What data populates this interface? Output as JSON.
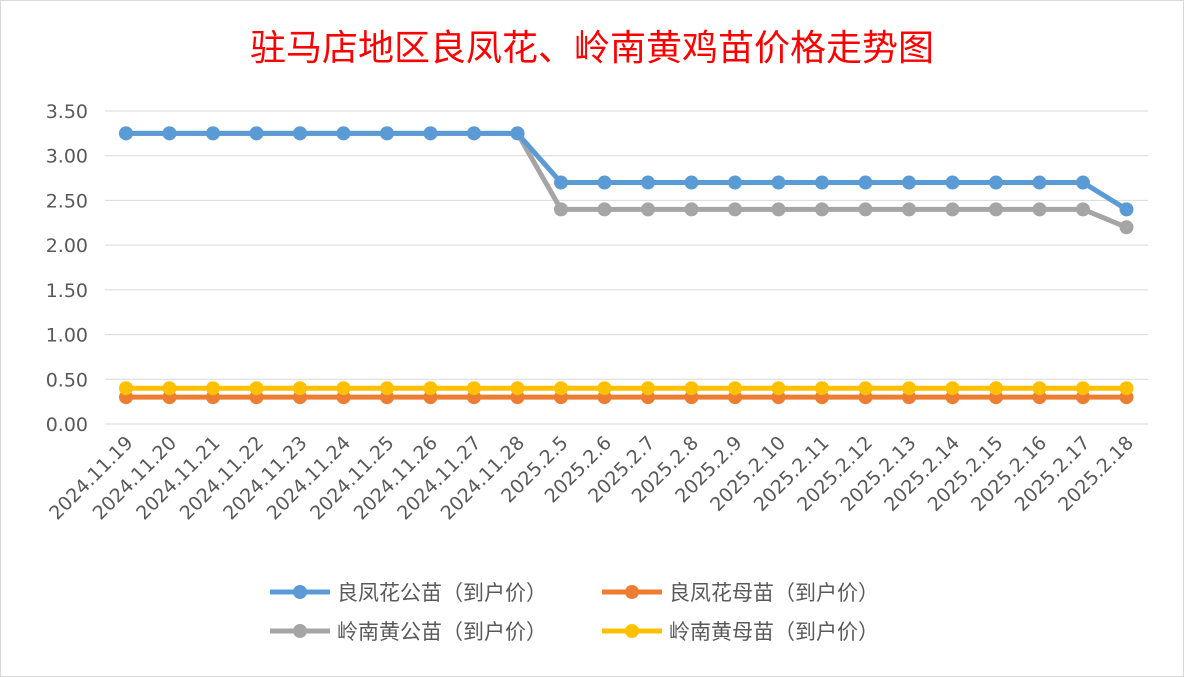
{
  "chart_data": {
    "type": "line",
    "title": "驻马店地区良凤花、岭南黄鸡苗价格走势图",
    "xlabel": "",
    "ylabel": "",
    "categories": [
      "2024.11.19",
      "2024.11.20",
      "2024.11.21",
      "2024.11.22",
      "2024.11.23",
      "2024.11.24",
      "2024.11.25",
      "2024.11.26",
      "2024.11.27",
      "2024.11.28",
      "2025.2.5",
      "2025.2.6",
      "2025.2.7",
      "2025.2.8",
      "2025.2.9",
      "2025.2.10",
      "2025.2.11",
      "2025.2.12",
      "2025.2.13",
      "2025.2.14",
      "2025.2.15",
      "2025.2.16",
      "2025.2.17",
      "2025.2.18"
    ],
    "ylim": [
      0,
      3.5
    ],
    "yticks": [
      "0.00",
      "0.50",
      "1.00",
      "1.50",
      "2.00",
      "2.50",
      "3.00",
      "3.50"
    ],
    "grid": true,
    "legend_position": "bottom",
    "series": [
      {
        "name": "良凤花公苗（到户价）",
        "color": "#5b9bd5",
        "values": [
          3.25,
          3.25,
          3.25,
          3.25,
          3.25,
          3.25,
          3.25,
          3.25,
          3.25,
          3.25,
          2.7,
          2.7,
          2.7,
          2.7,
          2.7,
          2.7,
          2.7,
          2.7,
          2.7,
          2.7,
          2.7,
          2.7,
          2.7,
          2.4
        ]
      },
      {
        "name": "良凤花母苗（到户价）",
        "color": "#ed7d31",
        "values": [
          0.3,
          0.3,
          0.3,
          0.3,
          0.3,
          0.3,
          0.3,
          0.3,
          0.3,
          0.3,
          0.3,
          0.3,
          0.3,
          0.3,
          0.3,
          0.3,
          0.3,
          0.3,
          0.3,
          0.3,
          0.3,
          0.3,
          0.3,
          0.3
        ]
      },
      {
        "name": "岭南黄公苗（到户价）",
        "color": "#a5a5a5",
        "values": [
          3.25,
          3.25,
          3.25,
          3.25,
          3.25,
          3.25,
          3.25,
          3.25,
          3.25,
          3.25,
          2.4,
          2.4,
          2.4,
          2.4,
          2.4,
          2.4,
          2.4,
          2.4,
          2.4,
          2.4,
          2.4,
          2.4,
          2.4,
          2.2
        ]
      },
      {
        "name": "岭南黄母苗（到户价）",
        "color": "#ffc000",
        "values": [
          0.4,
          0.4,
          0.4,
          0.4,
          0.4,
          0.4,
          0.4,
          0.4,
          0.4,
          0.4,
          0.4,
          0.4,
          0.4,
          0.4,
          0.4,
          0.4,
          0.4,
          0.4,
          0.4,
          0.4,
          0.4,
          0.4,
          0.4,
          0.4
        ]
      }
    ]
  }
}
